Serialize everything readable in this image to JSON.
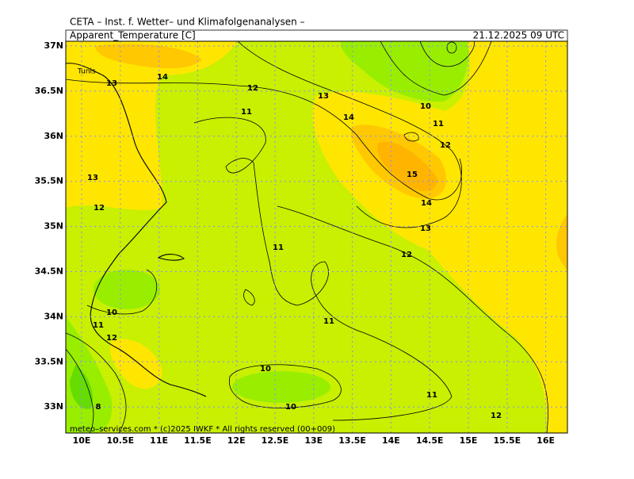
{
  "header": {
    "title": "CETA – Inst. f. Wetter– und Klimafolgenanalysen –",
    "parameter": "Apparent_Temperature [C]",
    "valid_time": "21.12.2025 09 UTC"
  },
  "map": {
    "lat_labels": [
      "37N",
      "36.5N",
      "36N",
      "35.5N",
      "35N",
      "34.5N",
      "34N",
      "33.5N",
      "33N"
    ],
    "lon_labels": [
      "10E",
      "10.5E",
      "11E",
      "11.5E",
      "12E",
      "12.5E",
      "13E",
      "13.5E",
      "14E",
      "14.5E",
      "15E",
      "15.5E",
      "16E"
    ],
    "place_labels": [
      "Tunis"
    ],
    "contour_labels": [
      13,
      14,
      12,
      11,
      13,
      14,
      10,
      11,
      12,
      15,
      14,
      13,
      12,
      11,
      11,
      13,
      12,
      10,
      11,
      12,
      10,
      10,
      11,
      12,
      8
    ],
    "footer": "meteo–services.com * (c)2025 IWKF * All rights reserved (00+009)"
  }
}
